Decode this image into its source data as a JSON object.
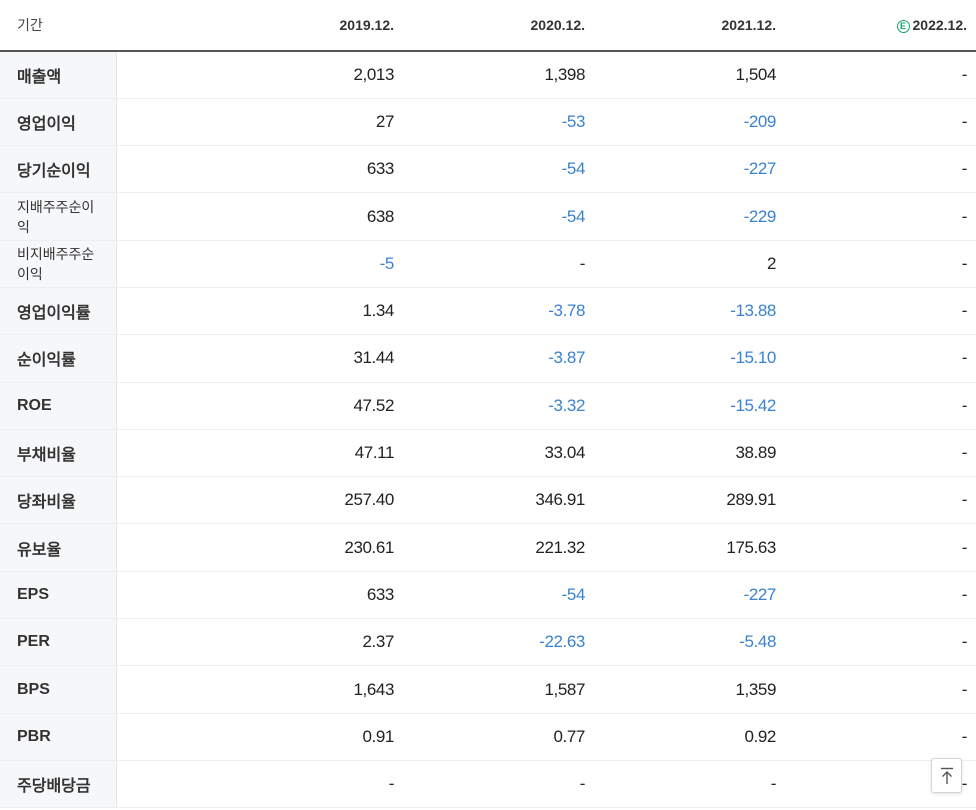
{
  "header": {
    "period_label": "기간",
    "columns": [
      "2019.12.",
      "2020.12.",
      "2021.12.",
      "2022.12."
    ],
    "estimate_badge": "E"
  },
  "rows": [
    {
      "label": "매출액",
      "values": [
        "2,013",
        "1,398",
        "1,504",
        "-"
      ]
    },
    {
      "label": "영업이익",
      "values": [
        "27",
        "-53",
        "-209",
        "-"
      ]
    },
    {
      "label": "당기순이익",
      "values": [
        "633",
        "-54",
        "-227",
        "-"
      ]
    },
    {
      "label": "지배주주순이익",
      "values": [
        "638",
        "-54",
        "-229",
        "-"
      ]
    },
    {
      "label": "비지배주주순이익",
      "values": [
        "-5",
        "-",
        "2",
        "-"
      ]
    },
    {
      "label": "영업이익률",
      "values": [
        "1.34",
        "-3.78",
        "-13.88",
        "-"
      ]
    },
    {
      "label": "순이익률",
      "values": [
        "31.44",
        "-3.87",
        "-15.10",
        "-"
      ]
    },
    {
      "label": "ROE",
      "values": [
        "47.52",
        "-3.32",
        "-15.42",
        "-"
      ]
    },
    {
      "label": "부채비율",
      "values": [
        "47.11",
        "33.04",
        "38.89",
        "-"
      ]
    },
    {
      "label": "당좌비율",
      "values": [
        "257.40",
        "346.91",
        "289.91",
        "-"
      ]
    },
    {
      "label": "유보율",
      "values": [
        "230.61",
        "221.32",
        "175.63",
        "-"
      ]
    },
    {
      "label": "EPS",
      "values": [
        "633",
        "-54",
        "-227",
        "-"
      ]
    },
    {
      "label": "PER",
      "values": [
        "2.37",
        "-22.63",
        "-5.48",
        "-"
      ]
    },
    {
      "label": "BPS",
      "values": [
        "1,643",
        "1,587",
        "1,359",
        "-"
      ]
    },
    {
      "label": "PBR",
      "values": [
        "0.91",
        "0.77",
        "0.92",
        "-"
      ]
    },
    {
      "label": "주당배당금",
      "values": [
        "-",
        "-",
        "-",
        "-"
      ]
    }
  ],
  "colors": {
    "negative": "#3a82d0",
    "estimate": "#1aa36b"
  },
  "scroll_top_icon": "arrow-up-to-top-icon"
}
